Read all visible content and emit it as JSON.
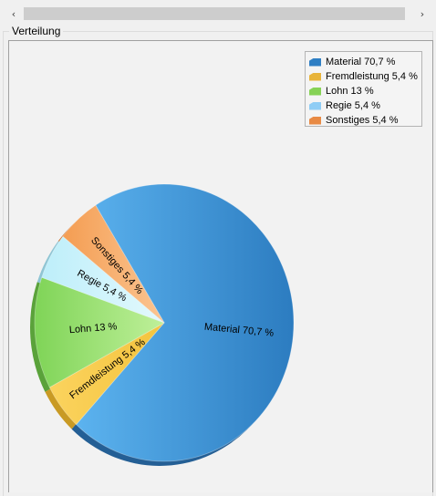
{
  "scrollbar": {
    "left_icon": "chevron-left-icon",
    "right_icon": "chevron-right-icon",
    "left_glyph": "‹",
    "right_glyph": "›"
  },
  "group": {
    "title": "Verteilung"
  },
  "chart_data": {
    "type": "pie",
    "slices": [
      {
        "label": "Material 70,7 %",
        "value": 70.7,
        "color": "#3a8fd0"
      },
      {
        "label": "Fremdleistung 5,4 %",
        "value": 5.4,
        "color": "#f5c94a"
      },
      {
        "label": "Lohn 13 %",
        "value": 13.0,
        "color": "#9be36f"
      },
      {
        "label": "Regie 5,4 %",
        "value": 5.4,
        "color": "#c8f2fb"
      },
      {
        "label": "Sonstiges 5,4 %",
        "value": 5.4,
        "color": "#f7b277"
      }
    ],
    "legend": [
      {
        "label": "Material 70,7 %",
        "color": "#2f7fc4"
      },
      {
        "label": "Fremdleistung 5,4 %",
        "color": "#e8b43a"
      },
      {
        "label": "Lohn 13 %",
        "color": "#86d255"
      },
      {
        "label": "Regie 5,4 %",
        "color": "#8fcdf5"
      },
      {
        "label": "Sonstiges 5,4 %",
        "color": "#e88a44"
      }
    ],
    "legend_position": "top-right"
  }
}
